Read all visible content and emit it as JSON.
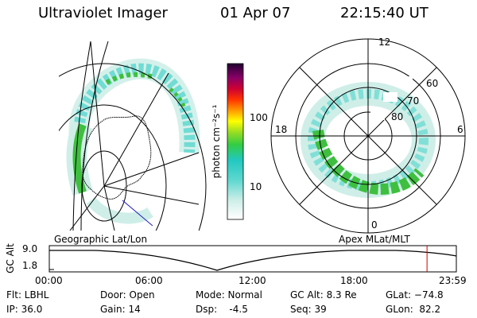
{
  "header": {
    "instrument": "Ultraviolet Imager",
    "date": "01 Apr 07",
    "time": "22:15:40 UT"
  },
  "colorbar": {
    "label": "photon cm⁻²s⁻¹",
    "ticks": [
      "100",
      "10"
    ]
  },
  "polar_plot": {
    "lat_labels": [
      "60",
      "70",
      "80"
    ],
    "mlt_labels": [
      "12",
      "18",
      "6",
      "0"
    ]
  },
  "captions": {
    "left": "Geographic Lat/Lon",
    "right": "Apex MLat/MLT"
  },
  "timeline": {
    "ylabel": "GC Alt",
    "yticks": [
      "9.0",
      "1.8"
    ],
    "xticks": [
      "00:00",
      "06:00",
      "12:00",
      "18:00",
      "23:59"
    ],
    "marker_time_fraction": 0.928
  },
  "info": {
    "flt": "Flt: LBHL",
    "ip": "IP: 36.0",
    "door": "Door: Open",
    "gain": "Gain: 14",
    "mode": "Mode: Normal",
    "dsp": "Dsp:    -4.5",
    "gc_alt": "GC Alt: 8.3 Re",
    "seq": "Seq: 39",
    "glat": "GLat: −74.8",
    "glon": "GLon:  82.2"
  },
  "colors": {
    "aurora_green": "#3fbf3f",
    "aurora_cyan": "#5fd8d0",
    "aurora_pale": "#cfeee8",
    "marker_red": "#d00000",
    "track_blue": "#2020c0"
  }
}
